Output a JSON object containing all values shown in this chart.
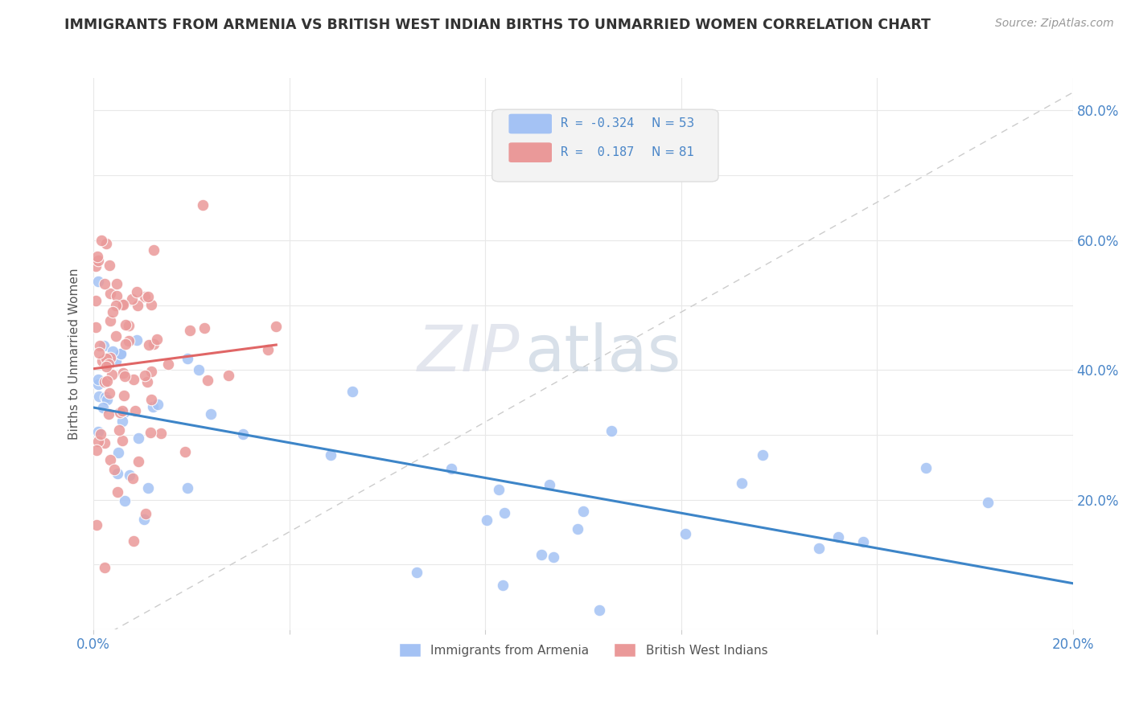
{
  "title": "IMMIGRANTS FROM ARMENIA VS BRITISH WEST INDIAN BIRTHS TO UNMARRIED WOMEN CORRELATION CHART",
  "source": "Source: ZipAtlas.com",
  "ylabel_label": "Births to Unmarried Women",
  "xlim": [
    0.0,
    0.2
  ],
  "ylim": [
    0.0,
    0.85
  ],
  "blue_color": "#a4c2f4",
  "pink_color": "#ea9999",
  "blue_line_color": "#3d85c8",
  "pink_line_color": "#e06666",
  "grid_color": "#e8e8e8",
  "legend_box_color": "#f3f3f3",
  "legend_border_color": "#dddddd",
  "text_color": "#4a86c8",
  "title_color": "#333333",
  "source_color": "#999999",
  "ylabel_color": "#555555",
  "watermark_zip_color": "#d8dce8",
  "watermark_atlas_color": "#b8c8d8",
  "blue_R": "R = -0.324",
  "blue_N": "N = 53",
  "pink_R": "R =  0.187",
  "pink_N": "N = 81"
}
